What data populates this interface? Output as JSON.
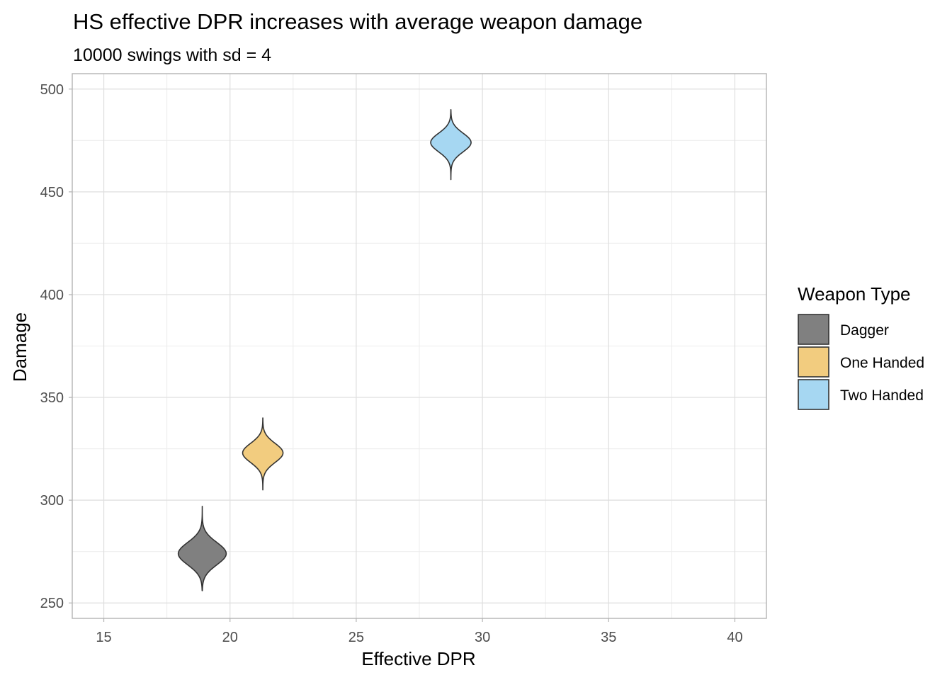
{
  "chart_data": {
    "type": "violin",
    "title": "HS effective DPR increases with average weapon damage",
    "subtitle": "10000 swings with sd = 4",
    "xlabel": "Effective DPR",
    "ylabel": "Damage",
    "xlim": [
      13.75,
      41.25
    ],
    "ylim": [
      242.5,
      507.5
    ],
    "xticks": [
      15,
      20,
      25,
      30,
      35,
      40
    ],
    "yticks": [
      250,
      300,
      350,
      400,
      450,
      500
    ],
    "grid": true,
    "legend": {
      "title": "Weapon Type",
      "position": "right"
    },
    "series": [
      {
        "name": "Dagger",
        "color": "#808080",
        "x": 18.9,
        "y_mean": 274,
        "y_min": 256,
        "y_max": 297,
        "half_width": 0.95
      },
      {
        "name": "One Handed",
        "color": "#f2cc7f",
        "x": 21.3,
        "y_mean": 323,
        "y_min": 305,
        "y_max": 340,
        "half_width": 0.8
      },
      {
        "name": "Two Handed",
        "color": "#a6d7f2",
        "x": 28.75,
        "y_mean": 474,
        "y_min": 456,
        "y_max": 490,
        "half_width": 0.8
      }
    ]
  }
}
